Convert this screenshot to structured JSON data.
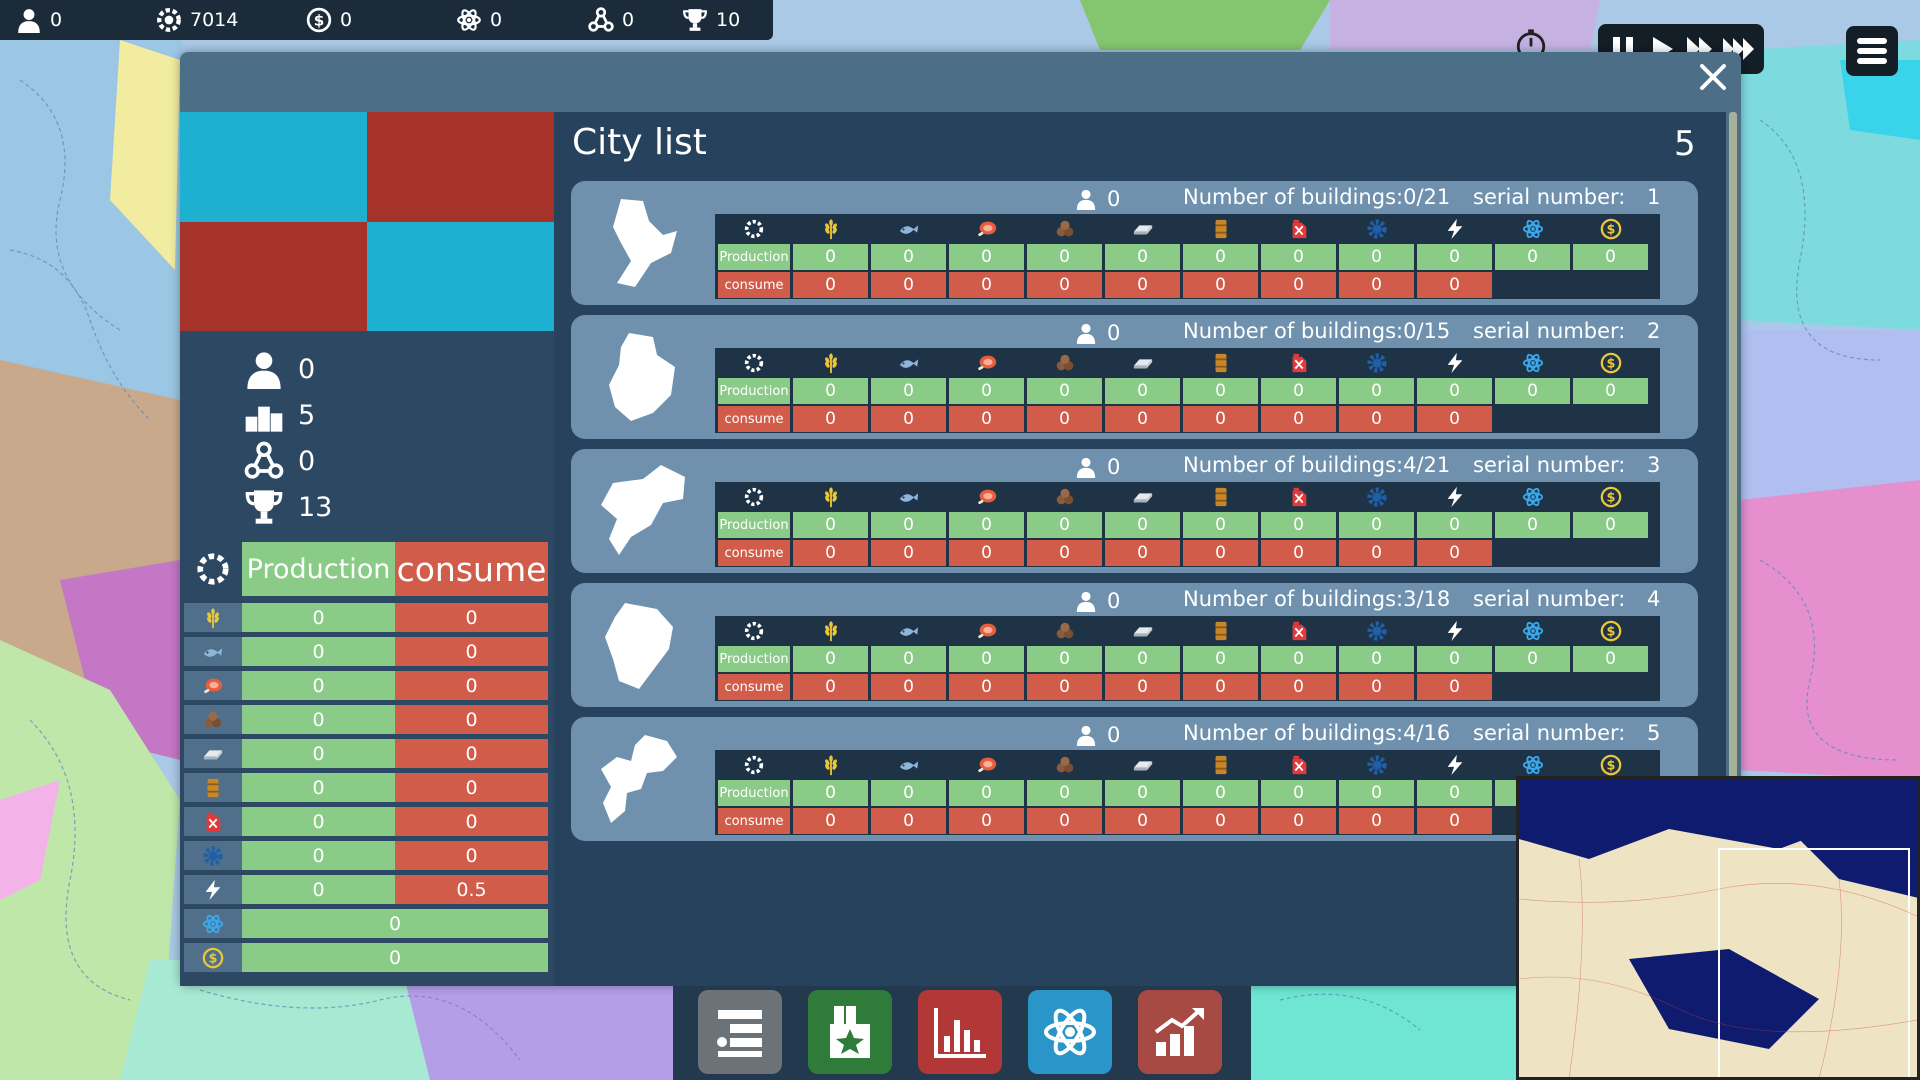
{
  "top_bar": {
    "population": "0",
    "gears": "7014",
    "money": "0",
    "science": "0",
    "network": "0",
    "trophies": "10"
  },
  "icons": {
    "population": "person-icon",
    "gears": "gear-icon",
    "money": "dollar-coin-icon",
    "science": "atom-icon",
    "network": "network-icon",
    "trophies": "trophy-icon"
  },
  "left_panel": {
    "flag_colors": [
      "#1eb0d0",
      "#a5332a",
      "#a5332a",
      "#1eb0d0"
    ],
    "stats": {
      "population": "0",
      "ranking": "5",
      "network": "0",
      "trophies": "13"
    },
    "summary_header": {
      "production": "Production",
      "consume": "consume"
    },
    "resources": [
      {
        "icon": "wheat-icon",
        "production": "0",
        "consume": "0"
      },
      {
        "icon": "fish-icon",
        "production": "0",
        "consume": "0"
      },
      {
        "icon": "meat-icon",
        "production": "0",
        "consume": "0"
      },
      {
        "icon": "ore-icon",
        "production": "0",
        "consume": "0"
      },
      {
        "icon": "metal-bar-icon",
        "production": "0",
        "consume": "0"
      },
      {
        "icon": "oil-barrel-icon",
        "production": "0",
        "consume": "0"
      },
      {
        "icon": "fuel-can-icon",
        "production": "0",
        "consume": "0"
      },
      {
        "icon": "cog-icon",
        "production": "0",
        "consume": "0"
      },
      {
        "icon": "lightning-icon",
        "production": "0",
        "consume": "0.5"
      },
      {
        "icon": "atom-icon",
        "total": "0"
      },
      {
        "icon": "dollar-coin-icon",
        "total": "0"
      }
    ]
  },
  "city_list": {
    "title": "City list",
    "count": "5",
    "row_labels": {
      "production": "Production",
      "consume": "consume"
    },
    "cities": [
      {
        "population": "0",
        "buildings": "Number of buildings:0/21",
        "serial_label": "serial number:",
        "serial": "1"
      },
      {
        "population": "0",
        "buildings": "Number of buildings:0/15",
        "serial_label": "serial number:",
        "serial": "2"
      },
      {
        "population": "0",
        "buildings": "Number of buildings:4/21",
        "serial_label": "serial number:",
        "serial": "3"
      },
      {
        "population": "0",
        "buildings": "Number of buildings:3/18",
        "serial_label": "serial number:",
        "serial": "4"
      },
      {
        "population": "0",
        "buildings": "Number of buildings:4/16",
        "serial_label": "serial number:",
        "serial": "5"
      }
    ],
    "production_values": [
      "0",
      "0",
      "0",
      "0",
      "0",
      "0",
      "0",
      "0",
      "0",
      "0",
      "0"
    ],
    "consume_values": [
      "0",
      "0",
      "0",
      "0",
      "0",
      "0",
      "0",
      "0",
      "0"
    ]
  },
  "toolbar": {
    "buttons": [
      {
        "icon": "list-icon",
        "color": "#6b7378"
      },
      {
        "icon": "medal-icon",
        "color": "#2f7b3a"
      },
      {
        "icon": "bar-chart-icon",
        "color": "#b23838"
      },
      {
        "icon": "atom-icon",
        "color": "#2a95c9"
      },
      {
        "icon": "growth-chart-icon",
        "color": "#a64a43"
      }
    ]
  }
}
